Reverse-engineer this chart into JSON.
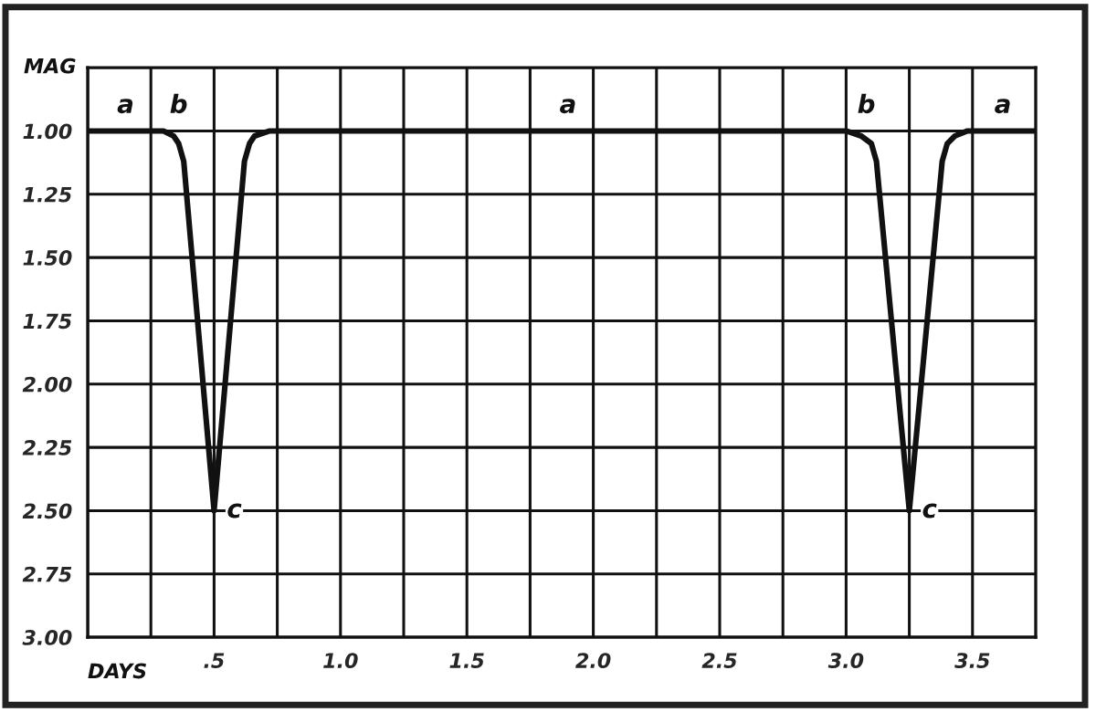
{
  "chart_data": {
    "type": "line",
    "xlabel": "DAYS",
    "ylabel": "MAG",
    "x": [
      0,
      0.3,
      0.34,
      0.36,
      0.38,
      0.5,
      0.62,
      0.64,
      0.66,
      0.72,
      3.0,
      3.06,
      3.1,
      3.12,
      3.25,
      3.38,
      3.4,
      3.43,
      3.48,
      3.75
    ],
    "series": [
      {
        "color": "#111111",
        "values": [
          1.0,
          1.0,
          1.02,
          1.05,
          1.12,
          2.5,
          1.12,
          1.05,
          1.02,
          1.0,
          1.0,
          1.02,
          1.05,
          1.12,
          2.5,
          1.12,
          1.05,
          1.02,
          1.0,
          1.0
        ]
      }
    ],
    "xlim": [
      0,
      3.75
    ],
    "ylim": [
      3.0,
      0.75
    ],
    "xticks": [
      {
        "value": 0,
        "label": null
      },
      {
        "value": 0.25,
        "label": null
      },
      {
        "value": 0.5,
        "label": ".5"
      },
      {
        "value": 0.75,
        "label": null
      },
      {
        "value": 1.0,
        "label": "1.0"
      },
      {
        "value": 1.25,
        "label": null
      },
      {
        "value": 1.5,
        "label": "1.5"
      },
      {
        "value": 1.75,
        "label": null
      },
      {
        "value": 2.0,
        "label": "2.0"
      },
      {
        "value": 2.25,
        "label": null
      },
      {
        "value": 2.5,
        "label": "2.5"
      },
      {
        "value": 2.75,
        "label": null
      },
      {
        "value": 3.0,
        "label": "3.0"
      },
      {
        "value": 3.25,
        "label": null
      },
      {
        "value": 3.5,
        "label": "3.5"
      }
    ],
    "yticks": [
      {
        "value": 1.0,
        "label": "1.00"
      },
      {
        "value": 1.25,
        "label": "1.25"
      },
      {
        "value": 1.5,
        "label": "1.50"
      },
      {
        "value": 1.75,
        "label": "1.75"
      },
      {
        "value": 2.0,
        "label": "2.00"
      },
      {
        "value": 2.25,
        "label": "2.25"
      },
      {
        "value": 2.5,
        "label": "2.50"
      },
      {
        "value": 2.75,
        "label": "2.75"
      },
      {
        "value": 3.0,
        "label": "3.00"
      }
    ],
    "grid": true,
    "legend": false,
    "marker": "none",
    "line_style": "solid",
    "annotations": [
      {
        "text": "a",
        "x": 0.15,
        "y": 1.0
      },
      {
        "text": "b",
        "x": 0.36,
        "y": 1.0
      },
      {
        "text": "c",
        "x": 0.5,
        "y": 2.5
      },
      {
        "text": "a",
        "x": 1.9,
        "y": 1.0
      },
      {
        "text": "b",
        "x": 3.08,
        "y": 1.0
      },
      {
        "text": "c",
        "x": 3.25,
        "y": 2.5
      },
      {
        "text": "a",
        "x": 3.62,
        "y": 1.0
      }
    ]
  }
}
